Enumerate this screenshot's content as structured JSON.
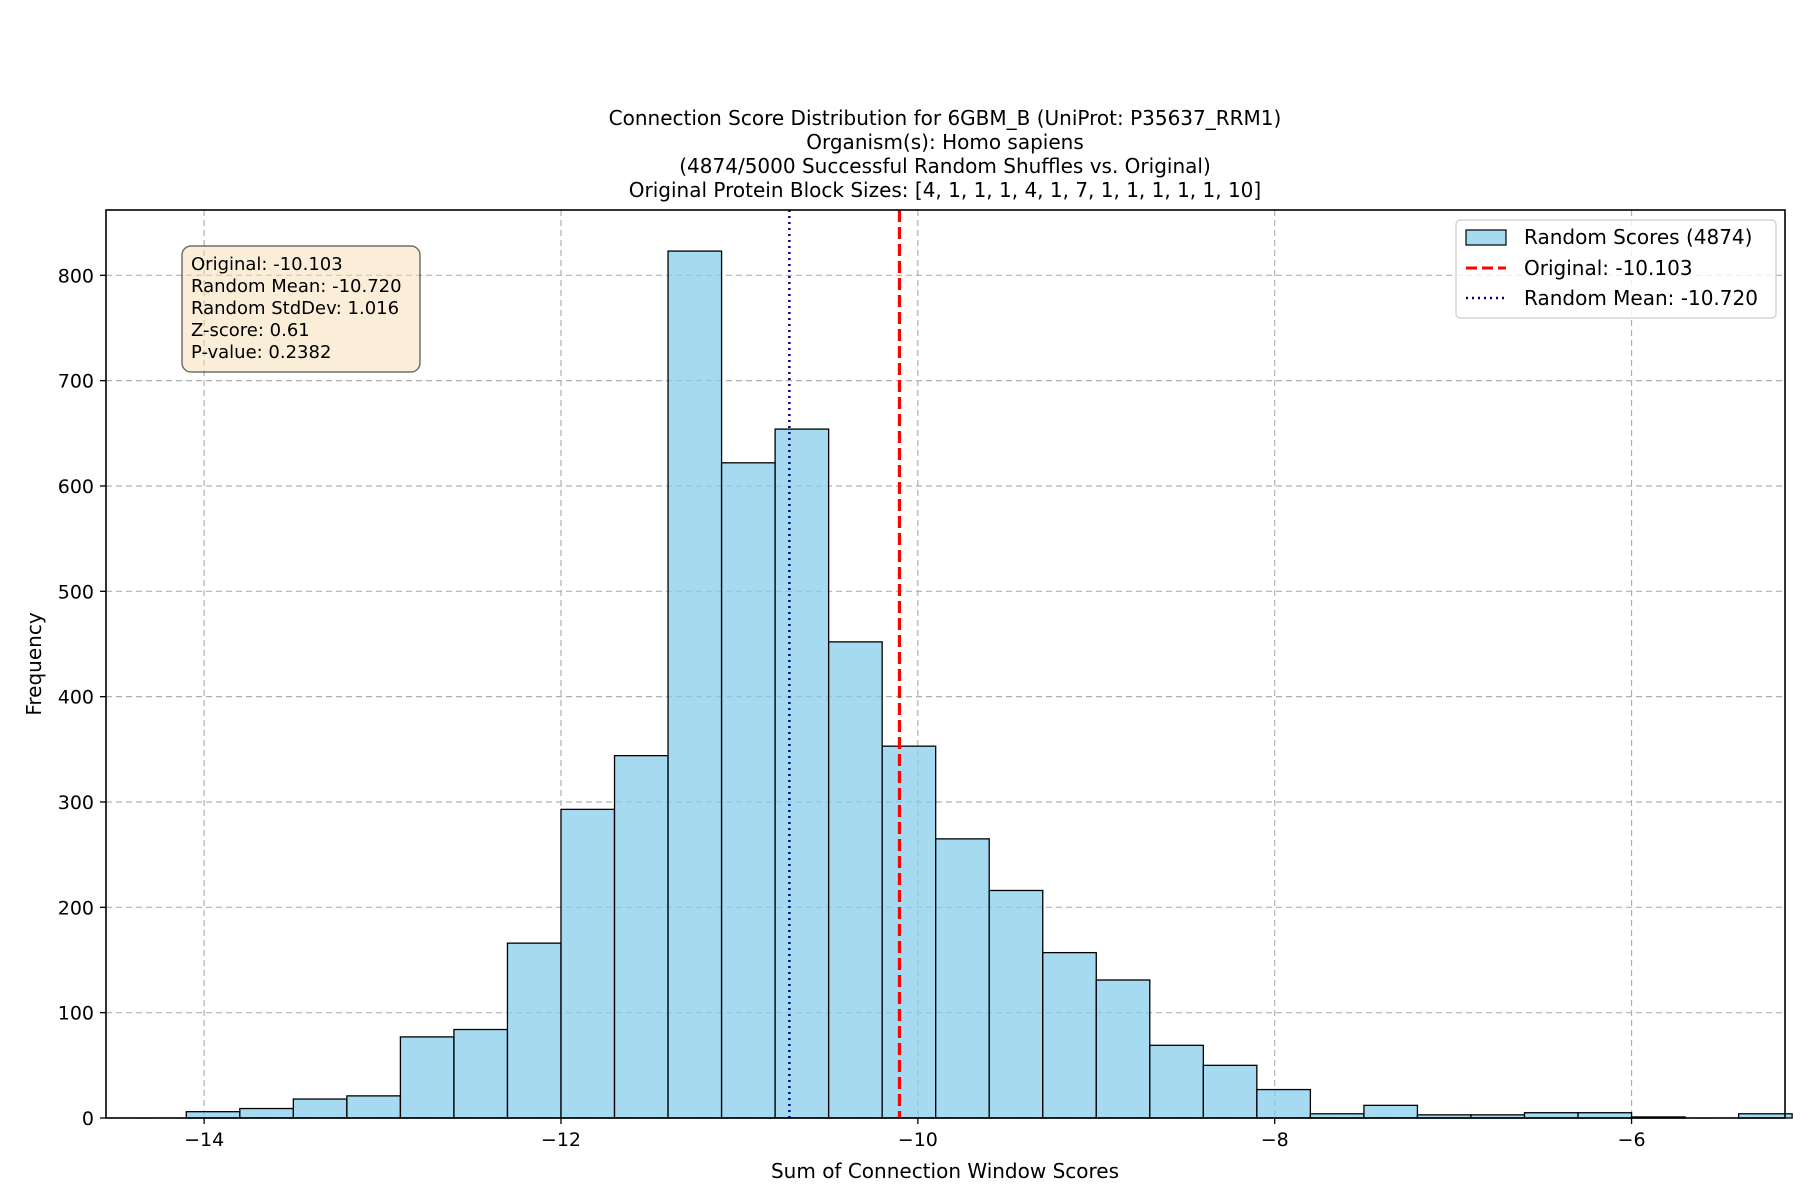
{
  "chart_data": {
    "type": "bar",
    "title_lines": [
      "Connection Score Distribution for 6GBM_B (UniProt: P35637_RRM1)",
      "Organism(s): Homo sapiens",
      "(4874/5000 Successful Random Shuffles vs. Original)",
      "Original Protein Block Sizes: [4, 1, 1, 1, 4, 1, 7, 1, 1, 1, 1, 1, 10]"
    ],
    "xlabel": "Sum of Connection Window Scores",
    "ylabel": "Frequency",
    "xlim": [
      -14.55,
      -5.14
    ],
    "ylim": [
      0,
      862
    ],
    "xticks": [
      -14,
      -12,
      -10,
      -8,
      -6
    ],
    "xtick_labels": [
      "−14",
      "−12",
      "−10",
      "−8",
      "−6"
    ],
    "yticks": [
      0,
      100,
      200,
      300,
      400,
      500,
      600,
      700,
      800
    ],
    "ytick_labels": [
      "0",
      "100",
      "200",
      "300",
      "400",
      "500",
      "600",
      "700",
      "800"
    ],
    "grid": true,
    "bin_edges": [
      -14.1,
      -13.8,
      -13.5,
      -13.2,
      -12.9,
      -12.6,
      -12.3,
      -12.0,
      -11.7,
      -11.4,
      -11.1,
      -10.8,
      -10.5,
      -10.2,
      -9.9,
      -9.6,
      -9.3,
      -9.0,
      -8.7,
      -8.4,
      -8.1,
      -7.8,
      -7.5,
      -7.2,
      -6.9,
      -6.6,
      -6.3,
      -6.0,
      -5.7,
      -5.4,
      -5.1
    ],
    "values": [
      6,
      9,
      18,
      21,
      77,
      84,
      166,
      293,
      344,
      823,
      622,
      654,
      452,
      353,
      265,
      216,
      157,
      131,
      69,
      50,
      27,
      4,
      12,
      3,
      3,
      5,
      5,
      1,
      0,
      4
    ],
    "bar_color": "#87ceeb",
    "original_line": {
      "x": -10.103,
      "color": "#ff0000",
      "style": "dashed"
    },
    "mean_line": {
      "x": -10.72,
      "color": "#00008b",
      "style": "dotted"
    },
    "legend": {
      "placement": "top-right",
      "entries": [
        "Random Scores (4874)",
        "Original: -10.103",
        "Random Mean: -10.720"
      ]
    },
    "stats_box": {
      "placement": "top-left",
      "lines": [
        "Original: -10.103",
        "Random Mean: -10.720",
        "Random StdDev: 1.016",
        "Z-score: 0.61",
        "P-value: 0.2382"
      ],
      "background": "#f5deb3"
    }
  }
}
